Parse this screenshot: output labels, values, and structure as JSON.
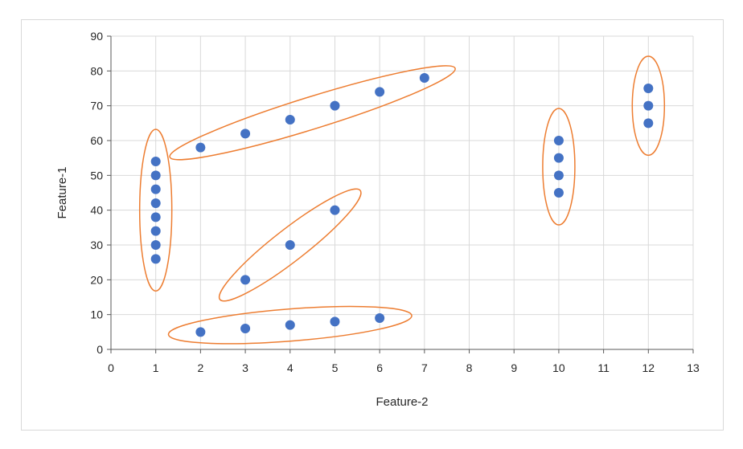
{
  "chart_data": {
    "type": "scatter",
    "title": "",
    "xlabel": "Feature-2",
    "ylabel": "Feature-1",
    "xlim": [
      0,
      13
    ],
    "ylim": [
      0,
      90
    ],
    "x_ticks": [
      "0",
      "1",
      "2",
      "3",
      "4",
      "5",
      "6",
      "7",
      "8",
      "9",
      "10",
      "11",
      "12",
      "13"
    ],
    "y_ticks": [
      "0",
      "10",
      "20",
      "30",
      "40",
      "50",
      "60",
      "70",
      "80",
      "90"
    ],
    "grid": true,
    "legend": "none",
    "point_color": "#4472c4",
    "cluster_outline_color": "#ed7d31",
    "series": [
      {
        "x": [
          1,
          1,
          1,
          1,
          1,
          1,
          1,
          1,
          2,
          3,
          4,
          5,
          6,
          7,
          3,
          4,
          5,
          2,
          3,
          4,
          5,
          6,
          10,
          10,
          10,
          10,
          12,
          12,
          12
        ],
        "y": [
          26,
          30,
          34,
          38,
          42,
          46,
          50,
          54,
          58,
          62,
          66,
          70,
          74,
          78,
          20,
          30,
          40,
          5,
          6,
          7,
          8,
          9,
          45,
          50,
          55,
          60,
          65,
          70,
          75
        ]
      }
    ],
    "clusters": [
      {
        "x": [
          1,
          1
        ],
        "y": [
          26,
          54
        ]
      },
      {
        "x": [
          2,
          7
        ],
        "y": [
          58,
          78
        ]
      },
      {
        "x": [
          3,
          5
        ],
        "y": [
          20,
          40
        ]
      },
      {
        "x": [
          2,
          6
        ],
        "y": [
          5,
          9
        ]
      },
      {
        "x": [
          10,
          10
        ],
        "y": [
          45,
          60
        ]
      },
      {
        "x": [
          12,
          12
        ],
        "y": [
          65,
          75
        ]
      }
    ]
  }
}
